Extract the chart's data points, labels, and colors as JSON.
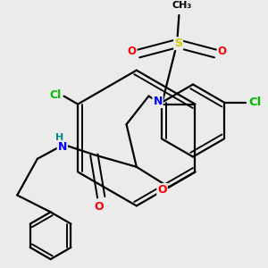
{
  "bg_color": "#ebebeb",
  "bond_color": "#000000",
  "atom_colors": {
    "N": "#0000ff",
    "O": "#ff0000",
    "S": "#cccc00",
    "Cl": "#00bb00",
    "C": "#000000",
    "H": "#008888"
  },
  "line_width": 1.6,
  "font_size": 8.5,
  "fig_size": [
    3.0,
    3.0
  ],
  "dpi": 100
}
